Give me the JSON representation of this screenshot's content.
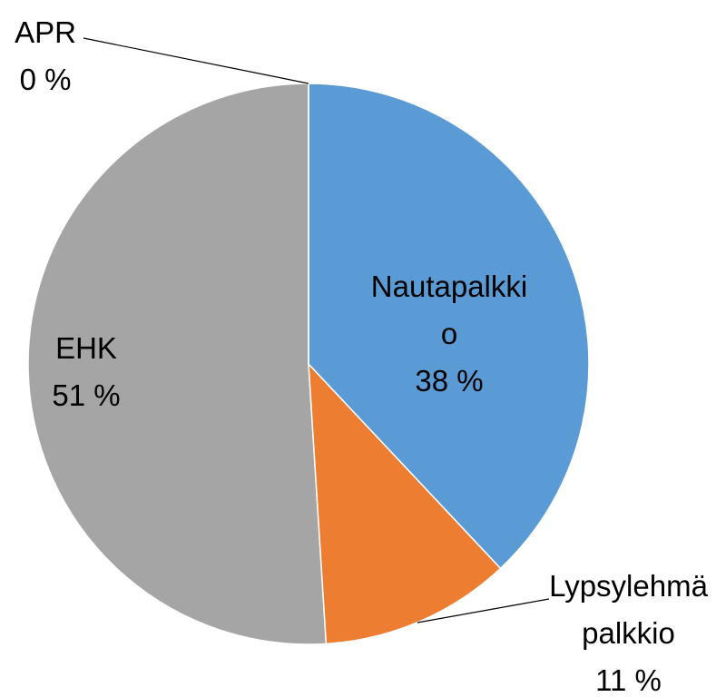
{
  "chart_data": {
    "type": "pie",
    "categories": [
      "APR",
      "Nautapalkkio",
      "Lypsylehmäpalkkio",
      "EHK"
    ],
    "values": [
      0,
      38,
      11,
      51
    ],
    "value_labels": [
      "0 %",
      "38 %",
      "11 %",
      "51 %"
    ],
    "colors": [
      "#ffc000",
      "#5b9bd5",
      "#ed7d31",
      "#a5a5a5"
    ]
  }
}
